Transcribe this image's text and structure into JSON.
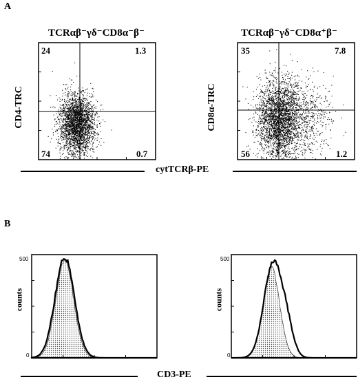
{
  "panel_a": {
    "letter": "A",
    "x_axis_label": "cytTCRβ-PE",
    "plots": [
      {
        "title": "TCRαβ⁻γδ⁻CD8α⁻β⁻",
        "ylabel": "CD4-TRC",
        "quadrants": {
          "upper_left": "24",
          "upper_right": "1.3",
          "lower_left": "74",
          "lower_right": "0.7"
        }
      },
      {
        "title": "TCRαβ⁻γδ⁻CD8α⁺β⁻",
        "ylabel": "CD8α-TRC",
        "quadrants": {
          "upper_left": "35",
          "upper_right": "7.8",
          "lower_left": "56",
          "lower_right": "1.2"
        }
      }
    ]
  },
  "panel_b": {
    "letter": "B",
    "x_axis_label": "CD3-PE",
    "plots": [
      {
        "ylabel": "counts",
        "y_ticks": [
          "0",
          "500"
        ]
      },
      {
        "ylabel": "counts",
        "y_ticks": [
          "0",
          "500"
        ]
      }
    ]
  },
  "chart_data": [
    {
      "type": "scatter",
      "title": "TCRαβ⁻γδ⁻CD8α⁻β⁻",
      "xlabel": "cytTCRβ-PE",
      "ylabel": "CD4-TRC",
      "quadrant_percentages": {
        "upper_left": 24,
        "upper_right": 1.3,
        "lower_left": 74,
        "lower_right": 0.7
      }
    },
    {
      "type": "scatter",
      "title": "TCRαβ⁻γδ⁻CD8α⁺β⁻",
      "xlabel": "cytTCRβ-PE",
      "ylabel": "CD8α-TRC",
      "quadrant_percentages": {
        "upper_left": 35,
        "upper_right": 7.8,
        "lower_left": 56,
        "lower_right": 1.2
      }
    },
    {
      "type": "area",
      "xlabel": "CD3-PE",
      "ylabel": "counts",
      "ylim": [
        0,
        500
      ]
    },
    {
      "type": "area",
      "xlabel": "CD3-PE",
      "ylabel": "counts",
      "ylim": [
        0,
        500
      ]
    }
  ]
}
